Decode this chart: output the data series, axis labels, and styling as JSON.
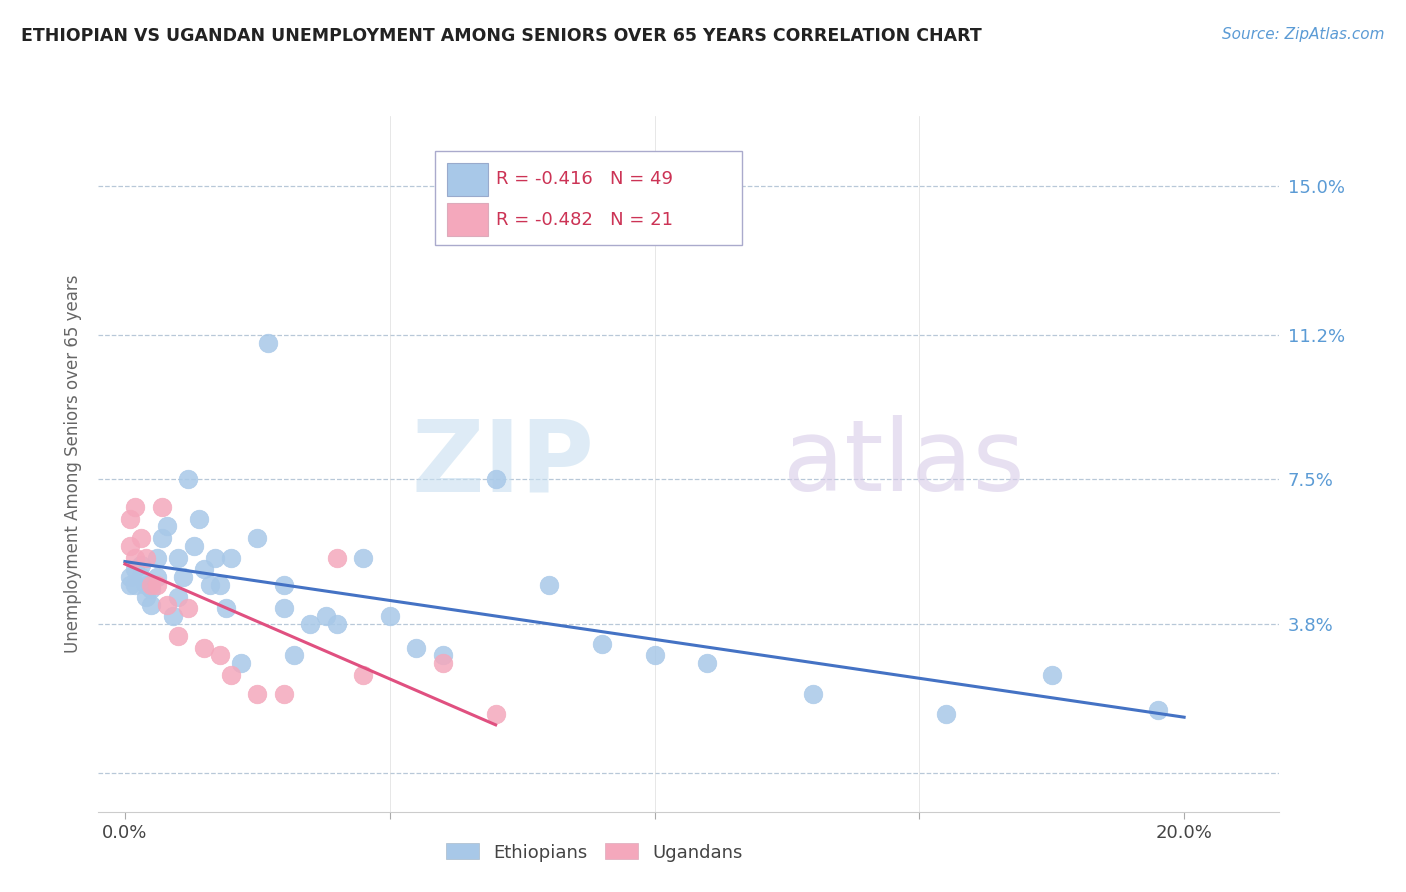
{
  "title": "ETHIOPIAN VS UGANDAN UNEMPLOYMENT AMONG SENIORS OVER 65 YEARS CORRELATION CHART",
  "source": "Source: ZipAtlas.com",
  "ylabel": "Unemployment Among Seniors over 65 years",
  "x_ticks": [
    0.0,
    0.05,
    0.1,
    0.15,
    0.2
  ],
  "x_tick_labels": [
    "0.0%",
    "",
    "",
    "",
    "20.0%"
  ],
  "y_ticks": [
    0.0,
    0.038,
    0.075,
    0.112,
    0.15
  ],
  "y_tick_labels": [
    "",
    "3.8%",
    "7.5%",
    "11.2%",
    "15.0%"
  ],
  "xlim": [
    -0.005,
    0.218
  ],
  "ylim": [
    -0.01,
    0.168
  ],
  "ethiopian_R": "-0.416",
  "ethiopian_N": "49",
  "ugandan_R": "-0.482",
  "ugandan_N": "21",
  "ethiopian_color": "#a8c8e8",
  "ugandan_color": "#f4a8bc",
  "regression_ethiopian_color": "#4472c4",
  "regression_ugandan_color": "#e05080",
  "ethiopians_x": [
    0.001,
    0.001,
    0.002,
    0.002,
    0.003,
    0.003,
    0.004,
    0.004,
    0.005,
    0.005,
    0.006,
    0.006,
    0.007,
    0.008,
    0.009,
    0.01,
    0.01,
    0.011,
    0.012,
    0.013,
    0.014,
    0.015,
    0.016,
    0.017,
    0.018,
    0.019,
    0.02,
    0.022,
    0.025,
    0.027,
    0.03,
    0.03,
    0.032,
    0.035,
    0.038,
    0.04,
    0.045,
    0.05,
    0.055,
    0.06,
    0.07,
    0.08,
    0.09,
    0.1,
    0.11,
    0.13,
    0.155,
    0.175,
    0.195
  ],
  "ethiopians_y": [
    0.05,
    0.048,
    0.052,
    0.048,
    0.05,
    0.053,
    0.048,
    0.045,
    0.047,
    0.043,
    0.055,
    0.05,
    0.06,
    0.063,
    0.04,
    0.055,
    0.045,
    0.05,
    0.075,
    0.058,
    0.065,
    0.052,
    0.048,
    0.055,
    0.048,
    0.042,
    0.055,
    0.028,
    0.06,
    0.11,
    0.048,
    0.042,
    0.03,
    0.038,
    0.04,
    0.038,
    0.055,
    0.04,
    0.032,
    0.03,
    0.075,
    0.048,
    0.033,
    0.03,
    0.028,
    0.02,
    0.015,
    0.025,
    0.016
  ],
  "ugandans_x": [
    0.001,
    0.001,
    0.002,
    0.002,
    0.003,
    0.004,
    0.005,
    0.006,
    0.007,
    0.008,
    0.01,
    0.012,
    0.015,
    0.018,
    0.02,
    0.025,
    0.03,
    0.04,
    0.045,
    0.06,
    0.07
  ],
  "ugandans_y": [
    0.065,
    0.058,
    0.055,
    0.068,
    0.06,
    0.055,
    0.048,
    0.048,
    0.068,
    0.043,
    0.035,
    0.042,
    0.032,
    0.03,
    0.025,
    0.02,
    0.02,
    0.055,
    0.025,
    0.028,
    0.015
  ]
}
